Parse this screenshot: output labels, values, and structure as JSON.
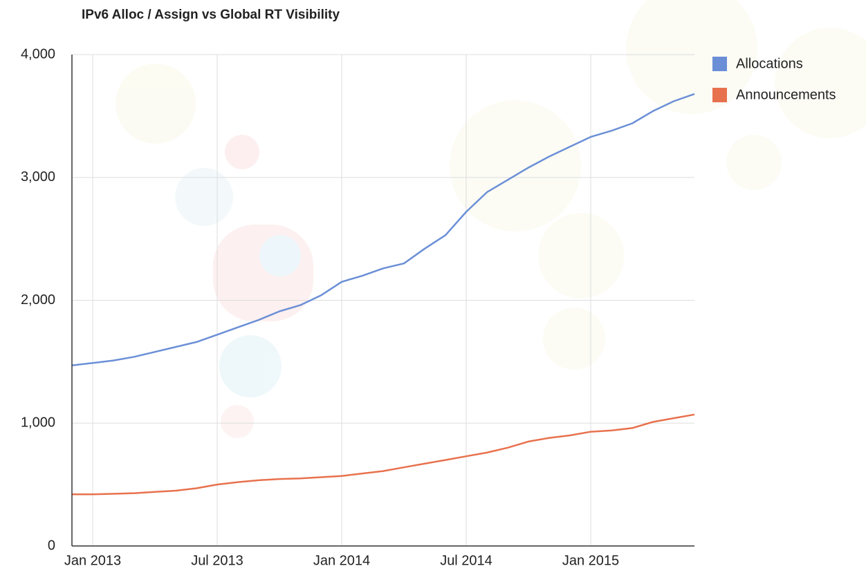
{
  "chart_data": {
    "type": "line",
    "title": "IPv6 Alloc / Assign vs Global RT Visibility",
    "x": [
      "2012-12",
      "2013-01",
      "2013-02",
      "2013-03",
      "2013-04",
      "2013-05",
      "2013-06",
      "2013-07",
      "2013-08",
      "2013-09",
      "2013-10",
      "2013-11",
      "2013-12",
      "2014-01",
      "2014-02",
      "2014-03",
      "2014-04",
      "2014-05",
      "2014-06",
      "2014-07",
      "2014-08",
      "2014-09",
      "2014-10",
      "2014-11",
      "2014-12",
      "2015-01",
      "2015-02",
      "2015-03",
      "2015-04",
      "2015-05",
      "2015-06"
    ],
    "series": [
      {
        "name": "Allocations",
        "color": "#6b8fd6",
        "values": [
          1470,
          1490,
          1510,
          1540,
          1580,
          1620,
          1660,
          1720,
          1780,
          1840,
          1910,
          1960,
          2040,
          2150,
          2200,
          2260,
          2300,
          2420,
          2530,
          2720,
          2880,
          2980,
          3080,
          3170,
          3250,
          3330,
          3380,
          3440,
          3540,
          3620,
          3680
        ]
      },
      {
        "name": "Announcements",
        "color": "#e8714d",
        "values": [
          420,
          420,
          425,
          430,
          440,
          450,
          470,
          500,
          520,
          535,
          545,
          550,
          560,
          570,
          590,
          610,
          640,
          670,
          700,
          730,
          760,
          800,
          850,
          880,
          900,
          930,
          940,
          960,
          1010,
          1040,
          1070
        ]
      }
    ],
    "xlim": [
      "2012-12",
      "2015-06"
    ],
    "xticks": [
      {
        "value": "2013-01",
        "label": "Jan 2013"
      },
      {
        "value": "2013-07",
        "label": "Jul 2013"
      },
      {
        "value": "2014-01",
        "label": "Jan 2014"
      },
      {
        "value": "2014-07",
        "label": "Jul 2014"
      },
      {
        "value": "2015-01",
        "label": "Jan 2015"
      }
    ],
    "ylim": [
      0,
      4000
    ],
    "yticks": [
      0,
      {
        "value": 1000,
        "label": "1,000"
      },
      {
        "value": 2000,
        "label": "2,000"
      },
      {
        "value": 3000,
        "label": "3,000"
      },
      {
        "value": 4000,
        "label": "4,000"
      }
    ],
    "grid": true,
    "legend": "right"
  }
}
